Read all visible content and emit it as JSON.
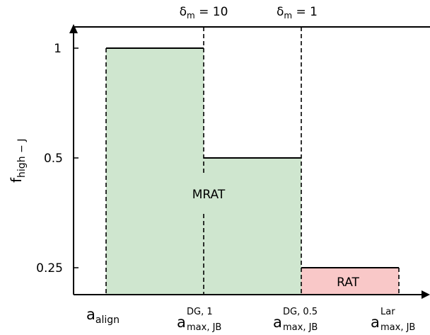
{
  "colors": {
    "mrat_fill": "#cfe6cf",
    "rat_fill": "#f9c8c8",
    "axis": "#000000"
  },
  "top_labels": {
    "delta_m_10": {
      "base": "δ",
      "sub": "m",
      "rest": " = 10"
    },
    "delta_m_1": {
      "base": "δ",
      "sub": "m",
      "rest": " = 1"
    }
  },
  "y_axis": {
    "label_base": "f",
    "label_sub": "high − J",
    "ticks": [
      "1",
      "0.5",
      "0.25"
    ]
  },
  "x_axis": {
    "ticks": [
      {
        "base": "a",
        "sub": "align",
        "sup": ""
      },
      {
        "base": "a",
        "sub": "max, JB",
        "sup": "DG, 1"
      },
      {
        "base": "a",
        "sub": "max, JB",
        "sup": "DG, 0.5"
      },
      {
        "base": "a",
        "sub": "max, JB",
        "sup": "Lar"
      }
    ]
  },
  "regions": {
    "mrat": "MRAT",
    "rat": "RAT"
  }
}
